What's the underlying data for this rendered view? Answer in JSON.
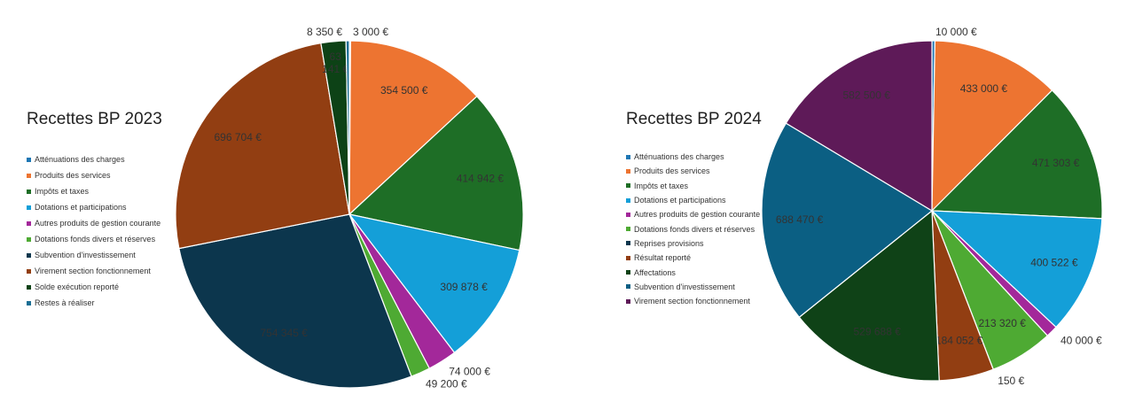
{
  "chart_data": [
    {
      "type": "pie",
      "title": "Recettes BP 2023",
      "slices": [
        {
          "label": "Atténuations des charges",
          "value": 3000,
          "display": "3 000 €",
          "color": "#1f77b4",
          "label_pos": "outside"
        },
        {
          "label": "Produits des services",
          "value": 354500,
          "display": "354 500 €",
          "color": "#ed7431",
          "label_pos": "inside"
        },
        {
          "label": "Impôts et taxes",
          "value": 414942,
          "display": "414 942 €",
          "color": "#1e6e26",
          "label_pos": "inside"
        },
        {
          "label": "Dotations et participations",
          "value": 309878,
          "display": "309 878 €",
          "color": "#149fd8",
          "label_pos": "inside"
        },
        {
          "label": "Autres produits de gestion courante",
          "value": 74000,
          "display": "74 000 €",
          "color": "#a3289a",
          "label_pos": "outside"
        },
        {
          "label": "Dotations fonds divers et réserves",
          "value": 49200,
          "display": "49 200 €",
          "color": "#4eaa33",
          "label_pos": "outside"
        },
        {
          "label": "Subvention d'investissement",
          "value": 754345,
          "display": "754 345 €",
          "color": "#0c364d",
          "label_pos": "inside"
        },
        {
          "label": "Virement section fonctionnement",
          "value": 696704,
          "display": "696 704 €",
          "color": "#923e12",
          "label_pos": "inside"
        },
        {
          "label": "Solde exécution reporté",
          "value": 63141,
          "display": "63 141 €",
          "color": "#0d4216",
          "label_pos": "inside-wrapped"
        },
        {
          "label": "Restes à réaliser",
          "value": 8350,
          "display": "8 350 €",
          "color": "#1a6e94",
          "label_pos": "outside"
        }
      ]
    },
    {
      "type": "pie",
      "title": "Recettes BP 2024",
      "slices": [
        {
          "label": "Atténuations des charges",
          "value": 10000,
          "display": "10 000 €",
          "color": "#1f77b4",
          "label_pos": "outside"
        },
        {
          "label": "Produits des services",
          "value": 433000,
          "display": "433 000 €",
          "color": "#ed7431",
          "label_pos": "inside"
        },
        {
          "label": "Impôts et taxes",
          "value": 471303,
          "display": "471 303 €",
          "color": "#1e6e26",
          "label_pos": "inside"
        },
        {
          "label": "Dotations et participations",
          "value": 400522,
          "display": "400 522 €",
          "color": "#149fd8",
          "label_pos": "inside"
        },
        {
          "label": "Autres produits de gestion courante",
          "value": 40000,
          "display": "40 000 €",
          "color": "#a3289a",
          "label_pos": "outside"
        },
        {
          "label": "Dotations fonds divers et réserves",
          "value": 213320,
          "display": "213 320 €",
          "color": "#4eaa33",
          "label_pos": "inside"
        },
        {
          "label": "Reprises provisions",
          "value": 150,
          "display": "150 €",
          "color": "#0c364d",
          "label_pos": "outside"
        },
        {
          "label": "Résultat reporté",
          "value": 184052,
          "display": "184 052 €",
          "color": "#923e12",
          "label_pos": "inside"
        },
        {
          "label": "Affectations",
          "value": 529688,
          "display": "529 688 €",
          "color": "#0f4217",
          "label_pos": "inside"
        },
        {
          "label": "Subvention d'investissement",
          "value": 688470,
          "display": "688 470 €",
          "color": "#0b5f83",
          "label_pos": "inside"
        },
        {
          "label": "Virement section fonctionnement",
          "value": 582500,
          "display": "582 500 €",
          "color": "#5e1a58",
          "label_pos": "inside"
        }
      ]
    }
  ]
}
